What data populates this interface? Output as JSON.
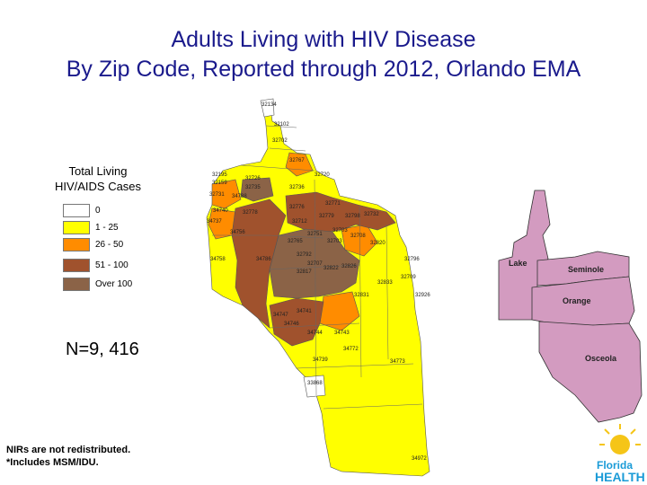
{
  "title": {
    "line1": "Adults Living with HIV Disease",
    "line2": "By Zip Code, Reported through 2012, Orlando EMA"
  },
  "legend": {
    "title_line1": "Total Living",
    "title_line2": "HIV/AIDS Cases",
    "items": [
      {
        "label": "0",
        "color": "#ffffff"
      },
      {
        "label": "1 - 25",
        "color": "#ffff00"
      },
      {
        "label": "26 - 50",
        "color": "#ff8c00"
      },
      {
        "label": "51 - 100",
        "color": "#a0522d"
      },
      {
        "label": "Over 100",
        "color": "#8b6347"
      }
    ]
  },
  "total": "N=9, 416",
  "footnote": {
    "line1": "NIRs are not redistributed.",
    "line2": "*Includes MSM/IDU."
  },
  "inset_counties": [
    "Lake",
    "Seminole",
    "Orange",
    "Osceola"
  ],
  "inset_color": "#d39bc0",
  "zip_labels": [
    "32134",
    "32102",
    "32702",
    "32767",
    "32195",
    "32159",
    "32726",
    "32735",
    "32736",
    "32720",
    "32731",
    "34788",
    "34740",
    "32778",
    "32776",
    "32771",
    "32732",
    "34737",
    "34756",
    "32712",
    "32779",
    "32798",
    "32751",
    "32703",
    "32708",
    "32765",
    "32703",
    "32792",
    "32707",
    "32817",
    "32822",
    "32826",
    "32820",
    "32833",
    "32831",
    "34758",
    "34786",
    "34747",
    "34741",
    "34746",
    "34744",
    "34743",
    "34772",
    "34739",
    "34773",
    "33868",
    "32926",
    "32796",
    "34972",
    "32709"
  ],
  "logo": {
    "line1": "Florida",
    "line2": "HEALTH"
  }
}
